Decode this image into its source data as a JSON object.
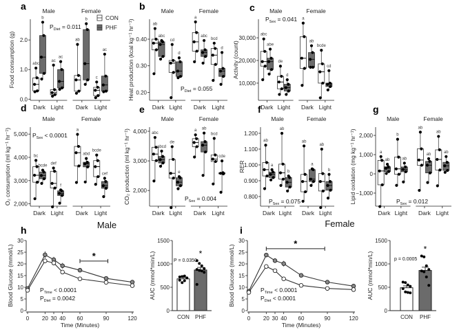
{
  "colors": {
    "con": "#ffffff",
    "phf": "#6b6b6b",
    "line": "#333333",
    "dot": "#000000"
  },
  "legend": {
    "con": "CON",
    "phf": "PHF"
  },
  "groups": {
    "male": "Male",
    "female": "Female",
    "dark": "Dark",
    "light": "Light"
  },
  "section_titles": {
    "male": "Male",
    "female": "Female"
  },
  "chart_data": [
    {
      "id": "a",
      "type": "box",
      "letter": "a",
      "ylabel": "Food consumption (g)",
      "ylim": [
        -0.04,
        2.7
      ],
      "yticks": [
        0,
        1,
        2
      ],
      "ytick_labels": [
        "0.0",
        "1.0",
        "2.0"
      ],
      "pvalue": {
        "p": "P",
        "sub": "Diet",
        "rest": " = 0.011"
      },
      "boxes": [
        {
          "sex": "Male",
          "phase": "Dark",
          "diet": "CON",
          "min": 0.25,
          "q1": 0.28,
          "median": 0.5,
          "q3": 0.72,
          "max": 1.05,
          "letters": "abc"
        },
        {
          "sex": "Male",
          "phase": "Dark",
          "diet": "PHF",
          "min": 0.68,
          "q1": 0.87,
          "median": 1.42,
          "q3": 2.15,
          "max": 2.6,
          "letters": "b"
        },
        {
          "sex": "Male",
          "phase": "Light",
          "diet": "CON",
          "min": 0.1,
          "q1": 0.15,
          "median": 0.22,
          "q3": 0.32,
          "max": 1.15,
          "letters": "ac"
        },
        {
          "sex": "Male",
          "phase": "Light",
          "diet": "PHF",
          "min": 0.33,
          "q1": 0.38,
          "median": 0.6,
          "q3": 1.0,
          "max": 1.27,
          "letters": "ac"
        },
        {
          "sex": "Female",
          "phase": "Dark",
          "diet": "CON",
          "min": 0.2,
          "q1": 0.27,
          "median": 0.65,
          "q3": 0.8,
          "max": 1.85,
          "letters": "ab"
        },
        {
          "sex": "Female",
          "phase": "Dark",
          "diet": "PHF",
          "min": 0.5,
          "q1": 0.65,
          "median": 1.2,
          "q3": 2.35,
          "max": 2.55,
          "letters": "b"
        },
        {
          "sex": "Female",
          "phase": "Light",
          "diet": "CON",
          "min": 0.05,
          "q1": 0.12,
          "median": 0.3,
          "q3": 0.4,
          "max": 0.58,
          "letters": "c"
        },
        {
          "sex": "Female",
          "phase": "Light",
          "diet": "PHF",
          "min": 0.25,
          "q1": 0.27,
          "median": 0.48,
          "q3": 0.78,
          "max": 1.52,
          "letters": "ac"
        }
      ]
    },
    {
      "id": "b",
      "type": "box",
      "letter": "b",
      "ylabel": "Heat production (kcal kg⁻¹ hr⁻¹)",
      "ylim": [
        0.17,
        0.475
      ],
      "yticks": [
        0.2,
        0.3,
        0.4
      ],
      "ytick_labels": [
        "0.20",
        "0.30",
        "0.40"
      ],
      "pvalue": {
        "p": "P",
        "sub": "Diet",
        "rest": " = 0.055"
      },
      "boxes": [
        {
          "min": 0.27,
          "q1": 0.36,
          "median": 0.385,
          "q3": 0.4,
          "max": 0.44,
          "letters": "ab"
        },
        {
          "min": 0.325,
          "q1": 0.335,
          "median": 0.38,
          "q3": 0.39,
          "max": 0.395,
          "letters": "abc"
        },
        {
          "min": 0.18,
          "q1": 0.275,
          "median": 0.31,
          "q3": 0.32,
          "max": 0.38,
          "letters": "cd"
        },
        {
          "min": 0.255,
          "q1": 0.26,
          "median": 0.28,
          "q3": 0.315,
          "max": 0.33,
          "letters": "d"
        },
        {
          "min": 0.315,
          "q1": 0.355,
          "median": 0.39,
          "q3": 0.425,
          "max": 0.465,
          "letters": "a"
        },
        {
          "min": 0.31,
          "q1": 0.335,
          "median": 0.35,
          "q3": 0.36,
          "max": 0.395,
          "letters": "abc"
        },
        {
          "min": 0.245,
          "q1": 0.305,
          "median": 0.34,
          "q3": 0.365,
          "max": 0.385,
          "letters": "bcd"
        },
        {
          "min": 0.23,
          "q1": 0.26,
          "median": 0.28,
          "q3": 0.29,
          "max": 0.35,
          "letters": "d"
        }
      ]
    },
    {
      "id": "c",
      "type": "box",
      "letter": "c",
      "ylabel": "Activity (count)",
      "ylim": [
        2400,
        38200
      ],
      "yticks": [
        10000,
        20000,
        30000
      ],
      "ytick_labels": [
        "10,000",
        "20,000",
        "30,000"
      ],
      "pvalue": {
        "p": "P",
        "sub": "Sex",
        "rest": " = 0.041"
      },
      "boxes": [
        {
          "min": 11500,
          "q1": 17500,
          "median": 19500,
          "q3": 24000,
          "max": 29500,
          "letters": "abc"
        },
        {
          "min": 14000,
          "q1": 16000,
          "median": 19500,
          "q3": 21000,
          "max": 25000,
          "letters": "abe"
        },
        {
          "min": 5000,
          "q1": 7500,
          "median": 10500,
          "q3": 13000,
          "max": 17500,
          "letters": "de"
        },
        {
          "min": 5000,
          "q1": 6500,
          "median": 8000,
          "q3": 9500,
          "max": 11500,
          "letters": "d"
        },
        {
          "min": 9000,
          "q1": 16500,
          "median": 21000,
          "q3": 30500,
          "max": 36500,
          "letters": "a"
        },
        {
          "min": 17000,
          "q1": 17000,
          "median": 20500,
          "q3": 23500,
          "max": 26500,
          "letters": "ab"
        },
        {
          "min": 3500,
          "q1": 10000,
          "median": 15000,
          "q3": 18500,
          "max": 24500,
          "letters": "bcde"
        },
        {
          "min": 7000,
          "q1": 8500,
          "median": 9500,
          "q3": 10000,
          "max": 15500,
          "letters": "cd"
        }
      ]
    },
    {
      "id": "d",
      "type": "box",
      "letter": "d",
      "ylabel": "O₂ consumption (ml kg⁻¹ hr⁻¹)",
      "ylim": [
        1900,
        5300
      ],
      "yticks": [
        2000,
        3000,
        4000,
        5000
      ],
      "ytick_labels": [
        "2,000",
        "3,000",
        "4,000",
        "5,000"
      ],
      "pvalue": {
        "p": "P",
        "sub": "Sex",
        "rest": " < 0.0001"
      },
      "boxes": [
        {
          "min": 2220,
          "q1": 2930,
          "median": 3230,
          "q3": 3600,
          "max": 3870,
          "letters": "bc"
        },
        {
          "min": 2880,
          "q1": 3080,
          "median": 3220,
          "q3": 3370,
          "max": 3450,
          "letters": "bcde"
        },
        {
          "min": 1870,
          "q1": 2680,
          "median": 2880,
          "q3": 3400,
          "max": 3540,
          "letters": "def"
        },
        {
          "min": 2030,
          "q1": 2360,
          "median": 2450,
          "q3": 2560,
          "max": 2600,
          "letters": "f"
        },
        {
          "min": 2920,
          "q1": 3630,
          "median": 4200,
          "q3": 4470,
          "max": 4990,
          "letters": "a"
        },
        {
          "min": 2940,
          "q1": 3590,
          "median": 3720,
          "q3": 3790,
          "max": 3950,
          "letters": "abd"
        },
        {
          "min": 2840,
          "q1": 3170,
          "median": 3600,
          "q3": 3860,
          "max": 4100,
          "letters": "bcde"
        },
        {
          "min": 2310,
          "q1": 2670,
          "median": 2780,
          "q3": 2960,
          "max": 3100,
          "letters": "cef"
        }
      ]
    },
    {
      "id": "e",
      "type": "box",
      "letter": "e",
      "ylabel": "CO₂ production (ml kg⁻¹ hr⁻¹)",
      "ylim": [
        1470,
        4140
      ],
      "yticks": [
        2000,
        3000,
        4000
      ],
      "ytick_labels": [
        "2,000",
        "3,000",
        "4,000"
      ],
      "pvalue": {
        "p": "P",
        "sub": "Sex",
        "rest": " = 0.004"
      },
      "boxes": [
        {
          "min": 2320,
          "q1": 3010,
          "median": 3230,
          "q3": 3460,
          "max": 3790,
          "letters": "abc"
        },
        {
          "min": 2820,
          "q1": 2930,
          "median": 3040,
          "q3": 3150,
          "max": 3330,
          "letters": "abcd"
        },
        {
          "min": 1420,
          "q1": 2420,
          "median": 2580,
          "q3": 3050,
          "max": 3480,
          "letters": "de"
        },
        {
          "min": 2060,
          "q1": 2160,
          "median": 2280,
          "q3": 2430,
          "max": 2470,
          "letters": "e"
        },
        {
          "min": 3130,
          "q1": 3480,
          "median": 3620,
          "q3": 3750,
          "max": 3880,
          "letters": "a"
        },
        {
          "min": 2510,
          "q1": 3300,
          "median": 3530,
          "q3": 3650,
          "max": 3940,
          "letters": "ab"
        },
        {
          "min": 2220,
          "q1": 2980,
          "median": 3060,
          "q3": 3200,
          "max": 3760,
          "letters": "bcd"
        },
        {
          "min": 1940,
          "q1": 2560,
          "median": 2580,
          "q3": 2600,
          "max": 3000,
          "letters": "cde"
        }
      ]
    },
    {
      "id": "f",
      "type": "box",
      "letter": "f",
      "ylabel": "RER",
      "ylim": [
        0.739,
        1.239
      ],
      "yticks": [
        0.8,
        0.9,
        1.0,
        1.1,
        1.2
      ],
      "ytick_labels": [
        "0.800",
        "0.900",
        "1.000",
        "1.100",
        "1.200"
      ],
      "pvalue": {
        "p": "P",
        "sub": "Sex",
        "rest": " = 0.075"
      },
      "boxes": [
        {
          "min": 0.85,
          "q1": 0.93,
          "median": 0.97,
          "q3": 1.015,
          "max": 1.125,
          "letters": "ab"
        },
        {
          "min": 0.905,
          "q1": 0.92,
          "median": 0.94,
          "q3": 0.955,
          "max": 0.97,
          "letters": "a"
        },
        {
          "min": 0.87,
          "q1": 0.91,
          "median": 0.95,
          "q3": 1.005,
          "max": 1.2,
          "letters": "ab"
        },
        {
          "min": 0.835,
          "q1": 0.86,
          "median": 0.89,
          "q3": 0.92,
          "max": 0.93,
          "letters": "b"
        },
        {
          "min": 0.77,
          "q1": 0.83,
          "median": 0.895,
          "q3": 0.94,
          "max": 1.12,
          "letters": "ab"
        },
        {
          "min": 0.87,
          "q1": 0.895,
          "median": 0.91,
          "q3": 0.97,
          "max": 0.975,
          "letters": "a"
        },
        {
          "min": 0.73,
          "q1": 0.835,
          "median": 0.895,
          "q3": 0.945,
          "max": 1.1,
          "letters": "ab"
        },
        {
          "min": 0.79,
          "q1": 0.84,
          "median": 0.87,
          "q3": 0.895,
          "max": 0.94,
          "letters": "b"
        }
      ]
    },
    {
      "id": "g",
      "type": "box",
      "letter": "g",
      "ylabel": "Lipid oxidation (mg kg⁻¹ hr⁻¹)",
      "ylim": [
        -1680,
        2430
      ],
      "yticks": [
        -1000,
        0,
        1000,
        2000
      ],
      "ytick_labels": [
        "−1,000",
        "0",
        "1,000",
        "2,000"
      ],
      "pvalue": {
        "p": "P",
        "sub": "Sex",
        "rest": " = 0.012"
      },
      "boxes": [
        {
          "min": -1700,
          "q1": -570,
          "median": 150,
          "q3": 700,
          "max": 900,
          "letters": "a"
        },
        {
          "min": 20,
          "q1": 120,
          "median": 290,
          "q3": 370,
          "max": 500,
          "letters": "ab"
        },
        {
          "min": -600,
          "q1": -20,
          "median": 260,
          "q3": 870,
          "max": 1800,
          "letters": "b"
        },
        {
          "min": -420,
          "q1": 110,
          "median": 230,
          "q3": 360,
          "max": 560,
          "letters": "ab"
        },
        {
          "min": -860,
          "q1": 450,
          "median": 720,
          "q3": 1300,
          "max": 2170,
          "letters": "ab"
        },
        {
          "min": -450,
          "q1": 50,
          "median": 450,
          "q3": 650,
          "max": 790,
          "letters": "ab"
        },
        {
          "min": -620,
          "q1": 200,
          "median": 750,
          "q3": 1250,
          "max": 1950,
          "letters": "ab"
        },
        {
          "min": 80,
          "q1": 180,
          "median": 420,
          "q3": 600,
          "max": 900,
          "letters": "ab"
        }
      ]
    },
    {
      "id": "h",
      "type": "line",
      "letter": "h",
      "xlabel": "Time (Minutes)",
      "ylabel": "Blood Glucose (mmol/L)",
      "xlim": [
        0,
        120
      ],
      "ylim": [
        0,
        30
      ],
      "x": [
        0,
        20,
        30,
        40,
        60,
        90,
        120
      ],
      "xticks": [
        0,
        20,
        30,
        40,
        60,
        90,
        120
      ],
      "yticks": [
        0,
        5,
        10,
        15,
        20,
        25,
        30
      ],
      "series": [
        {
          "name": "CON",
          "values": [
            8.7,
            21.3,
            20.4,
            16.5,
            13.6,
            12.1,
            10.7
          ],
          "err": [
            0.4,
            0.6,
            1.0,
            0.8,
            0.3,
            0.3,
            0.3
          ]
        },
        {
          "name": "PHF",
          "values": [
            9.5,
            23.9,
            21.8,
            19.2,
            17.3,
            13.8,
            12.2
          ],
          "err": [
            0.4,
            1.5,
            1.2,
            1.2,
            0.7,
            0.5,
            0.4
          ]
        }
      ],
      "sig": {
        "from": 60,
        "to": 92,
        "y": 21.2,
        "label": "*"
      },
      "stats": [
        {
          "p": "P",
          "sub": "Time",
          "rest": " < 0.0001"
        },
        {
          "p": "P",
          "sub": "Diet",
          "rest": " = 0.0042"
        }
      ]
    },
    {
      "id": "h-auc",
      "type": "bar",
      "ylabel": "AUC (mmol*min/L)",
      "ylim": [
        0,
        1500
      ],
      "yticks": [
        0,
        500,
        1000,
        1500
      ],
      "categories": [
        "CON",
        "PHF"
      ],
      "values": [
        680,
        870
      ],
      "err": [
        30,
        55
      ],
      "points": [
        [
          720,
          730,
          740,
          700,
          650,
          600,
          640
        ],
        [
          1070,
          1010,
          960,
          900,
          880,
          860,
          850,
          820,
          560
        ]
      ],
      "pvalue": "P = 0.0350",
      "star": "*"
    },
    {
      "id": "i",
      "type": "line",
      "letter": "i",
      "xlabel": "Time (Minutes)",
      "ylabel": "Blood Glucose (mmol/L)",
      "xlim": [
        0,
        120
      ],
      "ylim": [
        0,
        30
      ],
      "x": [
        0,
        20,
        30,
        40,
        60,
        90,
        120
      ],
      "xticks": [
        0,
        20,
        30,
        40,
        60,
        90,
        120
      ],
      "yticks": [
        0,
        5,
        10,
        15,
        20,
        25,
        30
      ],
      "series": [
        {
          "name": "CON",
          "values": [
            7.8,
            18.9,
            17.1,
            13.6,
            10.8,
            9.5,
            9.0
          ],
          "err": [
            0.3,
            0.4,
            0.4,
            0.4,
            0.3,
            0.3,
            0.3
          ]
        },
        {
          "name": "PHF",
          "values": [
            8.3,
            23.8,
            21.4,
            20.1,
            15.1,
            12.2,
            10.5
          ],
          "err": [
            0.4,
            0.7,
            1.0,
            1.2,
            0.8,
            0.5,
            0.4
          ]
        }
      ],
      "sig": {
        "from": 20,
        "to": 87,
        "y": 26.5,
        "label": "*"
      },
      "stats": [
        {
          "p": "P",
          "sub": "Time",
          "rest": " < 0.0001"
        },
        {
          "p": "P",
          "sub": "Diet",
          "rest": " < 0.0001"
        }
      ]
    },
    {
      "id": "i-auc",
      "type": "bar",
      "ylabel": "AUC (mmol*min/L)",
      "ylim": [
        0,
        1500
      ],
      "yticks": [
        0,
        500,
        1000,
        1500
      ],
      "categories": [
        "CON",
        "PHF"
      ],
      "values": [
        490,
        860
      ],
      "err": [
        40,
        70
      ],
      "points": [
        [
          610,
          600,
          550,
          520,
          470,
          400,
          390,
          380
        ],
        [
          1170,
          1150,
          960,
          880,
          850,
          830,
          720,
          540
        ]
      ],
      "pvalue": "p = 0.0005",
      "star": "*"
    }
  ]
}
